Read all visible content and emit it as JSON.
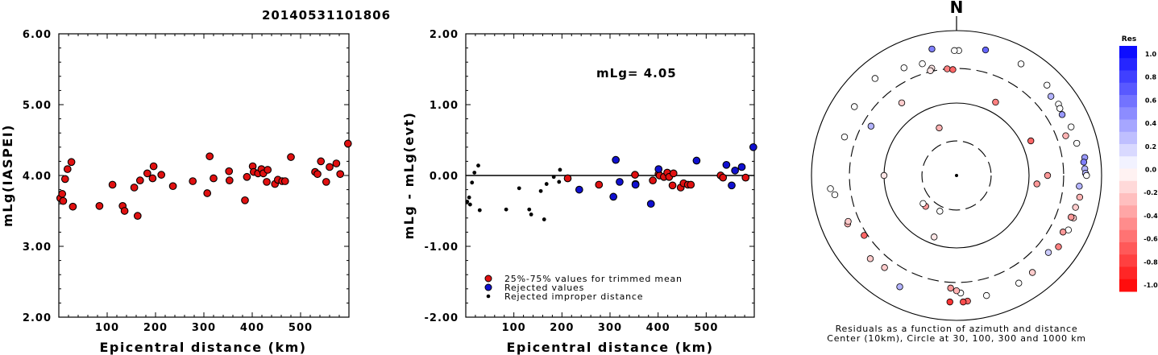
{
  "title": "20140531101806",
  "colors": {
    "red": "#e01010",
    "blue": "#1010d0",
    "black": "#000000"
  },
  "chart_data": [
    {
      "type": "scatter",
      "name": "magnitude-vs-distance",
      "xlabel": "Epicentral distance (km)",
      "ylabel": "mLg(IASPEI)",
      "xlim": [
        0,
        600
      ],
      "ylim": [
        2.0,
        6.0
      ],
      "xticks": [
        "100",
        "200",
        "300",
        "400",
        "500"
      ],
      "xtick_values": [
        100,
        200,
        300,
        400,
        500
      ],
      "yticks": [
        "2.00",
        "3.00",
        "4.00",
        "5.00",
        "6.00"
      ],
      "ytick_values": [
        2,
        3,
        4,
        5,
        6
      ],
      "points": [
        [
          3,
          3.68
        ],
        [
          7,
          3.74
        ],
        [
          9,
          3.64
        ],
        [
          13,
          3.95
        ],
        [
          18,
          4.09
        ],
        [
          26,
          4.19
        ],
        [
          29,
          3.56
        ],
        [
          84,
          3.57
        ],
        [
          111,
          3.87
        ],
        [
          132,
          3.57
        ],
        [
          136,
          3.5
        ],
        [
          156,
          3.83
        ],
        [
          163,
          3.43
        ],
        [
          168,
          3.93
        ],
        [
          183,
          4.03
        ],
        [
          194,
          3.96
        ],
        [
          196,
          4.13
        ],
        [
          212,
          4.01
        ],
        [
          236,
          3.85
        ],
        [
          277,
          3.92
        ],
        [
          307,
          3.75
        ],
        [
          312,
          4.27
        ],
        [
          320,
          3.96
        ],
        [
          352,
          4.06
        ],
        [
          353,
          3.93
        ],
        [
          385,
          3.65
        ],
        [
          389,
          3.98
        ],
        [
          401,
          4.13
        ],
        [
          403,
          4.05
        ],
        [
          412,
          4.03
        ],
        [
          419,
          4.09
        ],
        [
          423,
          4.03
        ],
        [
          430,
          3.91
        ],
        [
          432,
          4.08
        ],
        [
          447,
          3.88
        ],
        [
          453,
          3.94
        ],
        [
          462,
          3.92
        ],
        [
          468,
          3.92
        ],
        [
          480,
          4.26
        ],
        [
          530,
          4.05
        ],
        [
          535,
          4.02
        ],
        [
          542,
          4.2
        ],
        [
          553,
          3.91
        ],
        [
          560,
          4.12
        ],
        [
          574,
          4.17
        ],
        [
          582,
          4.02
        ],
        [
          598,
          4.45
        ]
      ]
    },
    {
      "type": "scatter",
      "name": "residual-vs-distance",
      "xlabel": "Epicentral distance (km)",
      "ylabel": "mLg - mLg(evt)",
      "annotation": "mLg= 4.05",
      "xlim": [
        0,
        600
      ],
      "ylim": [
        -2.0,
        2.0
      ],
      "xticks": [
        "100",
        "200",
        "300",
        "400",
        "500"
      ],
      "xtick_values": [
        100,
        200,
        300,
        400,
        500
      ],
      "yticks": [
        "-2.00",
        "-1.00",
        "0.00",
        "1.00",
        "2.00"
      ],
      "ytick_values": [
        -2,
        -1,
        0,
        1,
        2
      ],
      "series": [
        {
          "name": "25%-75% values for trimmed mean",
          "color": "red",
          "points": [
            [
              212,
              -0.04
            ],
            [
              277,
              -0.13
            ],
            [
              352,
              0.01
            ],
            [
              353,
              -0.12
            ],
            [
              389,
              -0.07
            ],
            [
              401,
              0.02
            ],
            [
              403,
              0.0
            ],
            [
              412,
              -0.02
            ],
            [
              419,
              0.04
            ],
            [
              423,
              -0.02
            ],
            [
              430,
              -0.14
            ],
            [
              432,
              0.03
            ],
            [
              447,
              -0.17
            ],
            [
              453,
              -0.11
            ],
            [
              462,
              -0.13
            ],
            [
              468,
              -0.13
            ],
            [
              530,
              0.0
            ],
            [
              535,
              -0.03
            ],
            [
              582,
              -0.03
            ]
          ]
        },
        {
          "name": "Rejected values",
          "color": "blue",
          "points": [
            [
              236,
              -0.2
            ],
            [
              307,
              -0.3
            ],
            [
              312,
              0.22
            ],
            [
              320,
              -0.09
            ],
            [
              353,
              -0.13
            ],
            [
              385,
              -0.4
            ],
            [
              401,
              0.09
            ],
            [
              480,
              0.21
            ],
            [
              542,
              0.15
            ],
            [
              553,
              -0.14
            ],
            [
              560,
              0.07
            ],
            [
              574,
              0.12
            ],
            [
              598,
              0.4
            ]
          ]
        },
        {
          "name": "Rejected improper distance",
          "color": "black",
          "points": [
            [
              3,
              -0.37
            ],
            [
              7,
              -0.31
            ],
            [
              9,
              -0.41
            ],
            [
              13,
              -0.1
            ],
            [
              18,
              0.04
            ],
            [
              26,
              0.14
            ],
            [
              29,
              -0.49
            ],
            [
              84,
              -0.48
            ],
            [
              111,
              -0.18
            ],
            [
              132,
              -0.48
            ],
            [
              136,
              -0.55
            ],
            [
              156,
              -0.22
            ],
            [
              163,
              -0.62
            ],
            [
              168,
              -0.12
            ],
            [
              183,
              -0.02
            ],
            [
              194,
              -0.09
            ],
            [
              196,
              0.08
            ]
          ]
        }
      ]
    },
    {
      "type": "polar-scatter",
      "name": "residual-azimuth-map",
      "north_label": "N",
      "caption_line1": "Residuals as a function of azimuth and distance",
      "caption_line2": "Center (10km), Circle at 30, 100, 300 and 1000 km",
      "rings_km": [
        30,
        100,
        300,
        1000
      ],
      "colorbar": {
        "title": "Res",
        "labels": [
          "1.0",
          "0.8",
          "0.6",
          "0.4",
          "0.2",
          "0.0",
          "-0.2",
          "-0.4",
          "-0.6",
          "-0.8",
          "-1.0"
        ],
        "range": [
          -1.0,
          1.0
        ]
      },
      "stations": [
        {
          "az": 349,
          "dist": 600,
          "res": 0.5
        },
        {
          "az": 13,
          "dist": 600,
          "res": 0.6
        },
        {
          "az": 1,
          "dist": 530,
          "res": 0.0
        },
        {
          "az": 359,
          "dist": 530,
          "res": 0.0
        },
        {
          "az": 320,
          "dist": 560,
          "res": 0.0
        },
        {
          "az": 334,
          "dist": 450,
          "res": 0.0
        },
        {
          "az": 343,
          "dist": 410,
          "res": 0.0
        },
        {
          "az": 347,
          "dist": 330,
          "res": -0.1
        },
        {
          "az": 346,
          "dist": 310,
          "res": -0.1
        },
        {
          "az": 355,
          "dist": 300,
          "res": -0.5
        },
        {
          "az": 358,
          "dist": 290,
          "res": -0.6
        },
        {
          "az": 30,
          "dist": 600,
          "res": 0.0
        },
        {
          "az": 45,
          "dist": 580,
          "res": 0.0
        },
        {
          "az": 50,
          "dist": 500,
          "res": 0.3
        },
        {
          "az": 55,
          "dist": 520,
          "res": 0.0
        },
        {
          "az": 57,
          "dist": 500,
          "res": 0.0
        },
        {
          "az": 60,
          "dist": 480,
          "res": 0.4
        },
        {
          "az": 67,
          "dist": 520,
          "res": 0.0
        },
        {
          "az": 70,
          "dist": 400,
          "res": -0.3
        },
        {
          "az": 75,
          "dist": 520,
          "res": 0.0
        },
        {
          "az": 82,
          "dist": 610,
          "res": 0.4
        },
        {
          "az": 84,
          "dist": 580,
          "res": 0.5
        },
        {
          "az": 87,
          "dist": 590,
          "res": 0.3
        },
        {
          "az": 89,
          "dist": 600,
          "res": 0.3
        },
        {
          "az": 90,
          "dist": 620,
          "res": 0.0
        },
        {
          "az": 95,
          "dist": 500,
          "res": 0.3
        },
        {
          "az": 100,
          "dist": 530,
          "res": -0.3
        },
        {
          "az": 105,
          "dist": 500,
          "res": -0.2
        },
        {
          "az": 110,
          "dist": 520,
          "res": -0.2
        },
        {
          "az": 110,
          "dist": 480,
          "res": -0.4
        },
        {
          "az": 116,
          "dist": 520,
          "res": 0.0
        },
        {
          "az": 118,
          "dist": 460,
          "res": -0.4
        },
        {
          "az": 125,
          "dist": 520,
          "res": -0.5
        },
        {
          "az": 130,
          "dist": 450,
          "res": 0.2
        },
        {
          "az": 142,
          "dist": 500,
          "res": -0.2
        },
        {
          "az": 150,
          "dist": 520,
          "res": 0.0
        },
        {
          "az": 166,
          "dist": 510,
          "res": 0.0
        },
        {
          "az": 175,
          "dist": 550,
          "res": -0.6
        },
        {
          "az": 177,
          "dist": 560,
          "res": -0.7
        },
        {
          "az": 183,
          "dist": 560,
          "res": -0.8
        },
        {
          "az": 178,
          "dist": 420,
          "res": 0.0
        },
        {
          "az": 180,
          "dist": 390,
          "res": -0.3
        },
        {
          "az": 183,
          "dist": 360,
          "res": -0.4
        },
        {
          "az": 207,
          "dist": 530,
          "res": 0.3
        },
        {
          "az": 218,
          "dist": 410,
          "res": -0.2
        },
        {
          "az": 226,
          "dist": 450,
          "res": -0.2
        },
        {
          "az": 237,
          "dist": 330,
          "res": -0.6
        },
        {
          "az": 246,
          "dist": 440,
          "res": -0.3
        },
        {
          "az": 247,
          "dist": 420,
          "res": -0.2
        },
        {
          "az": 261,
          "dist": 500,
          "res": 0.0
        },
        {
          "az": 264,
          "dist": 560,
          "res": 0.0
        },
        {
          "az": 289,
          "dist": 430,
          "res": 0.0
        },
        {
          "az": 304,
          "dist": 500,
          "res": 0.0
        },
        {
          "az": 300,
          "dist": 230,
          "res": 0.3
        },
        {
          "az": 323,
          "dist": 180,
          "res": -0.2
        },
        {
          "az": 28,
          "dist": 140,
          "res": -0.5
        },
        {
          "az": 65,
          "dist": 135,
          "res": -0.6
        },
        {
          "az": 90,
          "dist": 180,
          "res": -0.4
        },
        {
          "az": 96,
          "dist": 130,
          "res": -0.4
        },
        {
          "az": 270,
          "dist": 100,
          "res": -0.1
        },
        {
          "az": 340,
          "dist": 50,
          "res": -0.3
        },
        {
          "az": 225,
          "dist": 40,
          "res": -0.4
        },
        {
          "az": 200,
          "dist": 80,
          "res": -0.1
        },
        {
          "az": 205,
          "dist": 35,
          "res": 0.0
        },
        {
          "az": 230,
          "dist": 40,
          "res": 0.0
        }
      ],
      "center_marker": "event"
    }
  ],
  "legend": [
    {
      "label": "25%-75% values for trimmed mean",
      "color": "red"
    },
    {
      "label": "Rejected values",
      "color": "blue"
    },
    {
      "label": "Rejected improper distance",
      "color": "black"
    }
  ]
}
